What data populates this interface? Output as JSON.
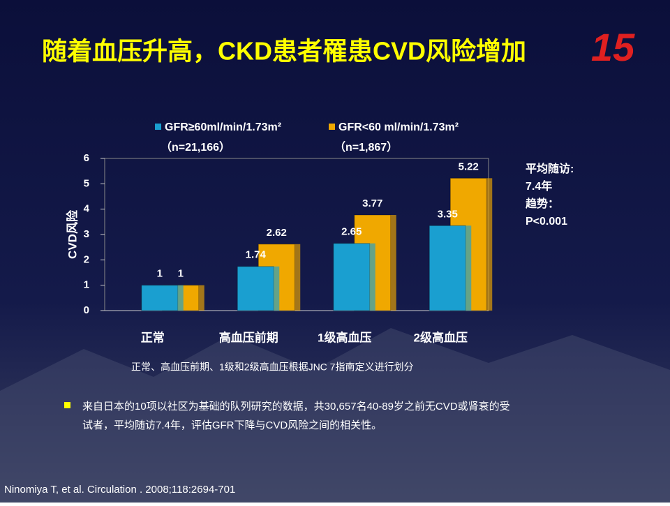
{
  "logo": "15",
  "chart_data": {
    "type": "bar",
    "title": "随着血压升高，CKD患者罹患CVD风险增加",
    "ylabel": "CVD风险",
    "categories": [
      "正常",
      "高血压前期",
      "1级高血压",
      "2级高血压"
    ],
    "series": [
      {
        "name": "GFR≥60ml/min/1.73m²",
        "sample": "（n=21,166）",
        "color": "#1a9fd0",
        "values": [
          1,
          1.74,
          2.65,
          3.35
        ]
      },
      {
        "name": "GFR<60 ml/min/1.73m²",
        "sample": "（n=1,867）",
        "color": "#f0a800",
        "values": [
          1,
          2.62,
          3.77,
          5.22
        ]
      }
    ],
    "ylim": [
      0,
      6
    ],
    "yticks": [
      0,
      1,
      2,
      3,
      4,
      5,
      6
    ],
    "annotation": [
      "平均随访:",
      "7.4年",
      "趋势：",
      "P<0.001"
    ],
    "footnote": "正常、高血压前期、1级和2级高血压根据JNC 7指南定义进行划分"
  },
  "bullet": [
    "来自日本的10项以社区为基础的队列研究的数据，共30,657名40-89岁之前无CVD或肾衰的受",
    "试者，平均随访7.4年，评估GFR下降与CVD风险之间的相关性。"
  ],
  "citation": "Ninomiya T, et al. Circulation . 2008;118:2694-701"
}
